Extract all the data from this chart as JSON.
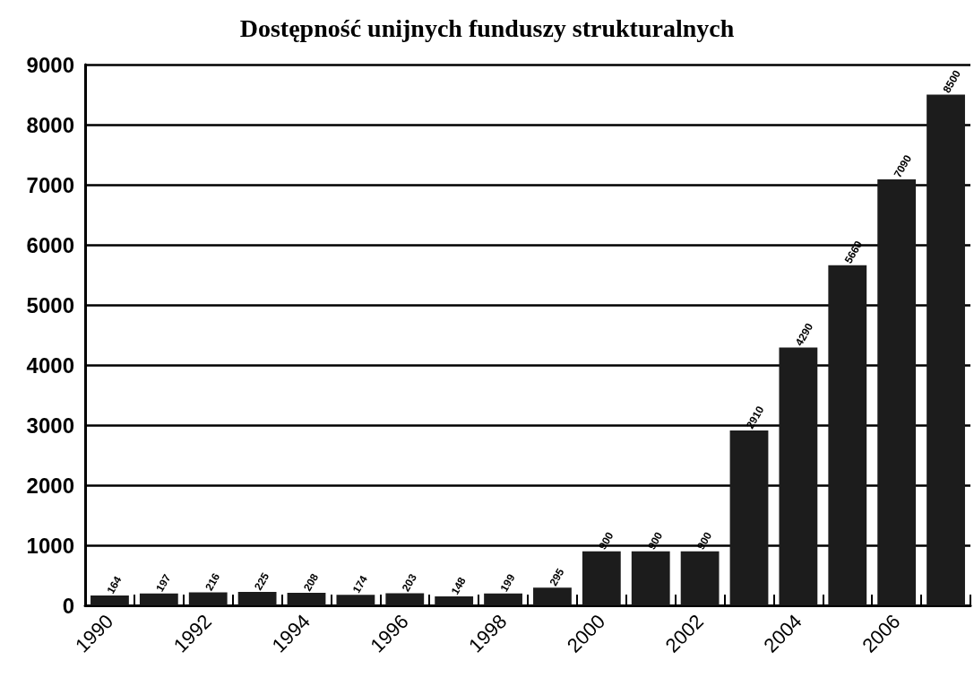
{
  "chart_data": {
    "type": "bar",
    "title": "Dostępność unijnych funduszy strukturalnych",
    "categories": [
      "1990",
      null,
      "1992",
      null,
      "1994",
      null,
      "1996",
      null,
      "1998",
      null,
      "2000",
      null,
      "2002",
      null,
      "2004",
      null,
      "2006",
      null
    ],
    "values": [
      164,
      197,
      216,
      225,
      208,
      174,
      203,
      148,
      199,
      295,
      900,
      900,
      900,
      2910,
      4290,
      5660,
      7090,
      8500
    ],
    "color": "#1c1c1c",
    "ylim": [
      0,
      9000
    ],
    "yticks": [
      0,
      1000,
      2000,
      3000,
      4000,
      5000,
      6000,
      7000,
      8000,
      9000
    ],
    "grid": "y",
    "data_labels": true
  }
}
